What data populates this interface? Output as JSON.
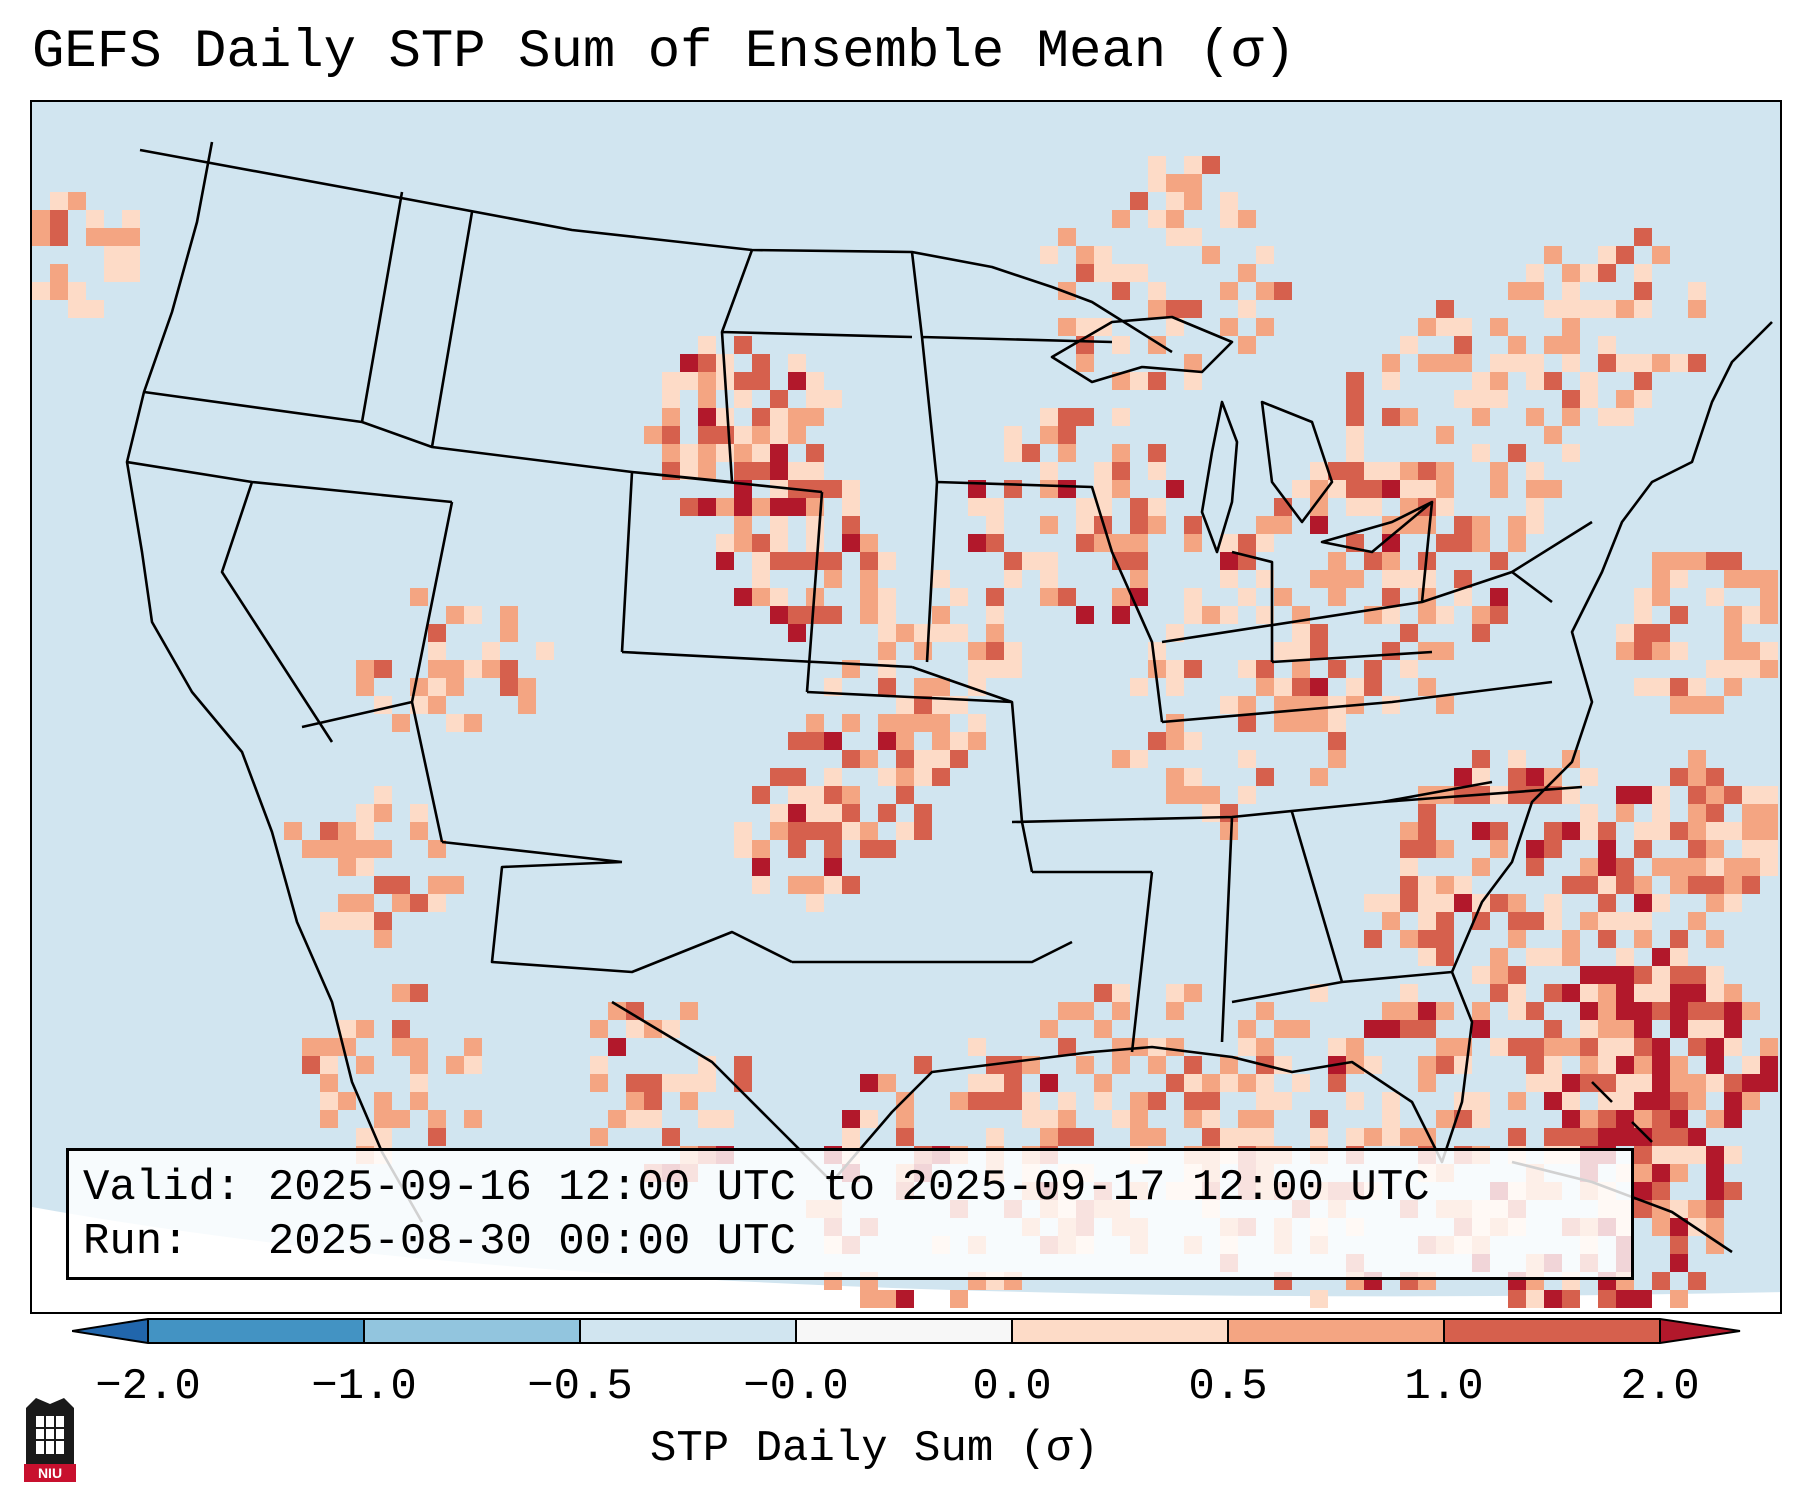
{
  "title": "GEFS Daily STP Sum of Ensemble Mean (σ)",
  "info_box": {
    "valid_label": "Valid:",
    "valid_value": "2025-09-16 12:00 UTC to 2025-09-17 12:00 UTC",
    "run_label": "Run:",
    "run_value": "2025-08-30 00:00 UTC"
  },
  "colorbar": {
    "label": "STP Daily Sum (σ)",
    "ticks": [
      "−2.0",
      "−1.0",
      "−0.5",
      "−0.0",
      "0.0",
      "0.5",
      "1.0",
      "2.0"
    ],
    "bins": [
      {
        "range": "< -2.0",
        "color": "#2166ac"
      },
      {
        "range": "-2.0 to -1.0",
        "color": "#4393c3"
      },
      {
        "range": "-1.0 to -0.5",
        "color": "#92c5de"
      },
      {
        "range": "-0.5 to -0.0",
        "color": "#d1e5f0"
      },
      {
        "range": "-0.0 to 0.0",
        "color": "#f7f7f7"
      },
      {
        "range": "0.0 to 0.5",
        "color": "#fddbc7"
      },
      {
        "range": "0.5 to 1.0",
        "color": "#f4a582"
      },
      {
        "range": "1.0 to 2.0",
        "color": "#d6604d"
      },
      {
        "range": "> 2.0",
        "color": "#b2182b"
      }
    ]
  },
  "logo": {
    "text": "NIU",
    "color": "#c8102e"
  },
  "colors": {
    "ocean_land_base": "#d1e5f0",
    "light": "#fddbc7",
    "medium": "#f4a582",
    "strong": "#d6604d",
    "extreme": "#b2182b"
  }
}
